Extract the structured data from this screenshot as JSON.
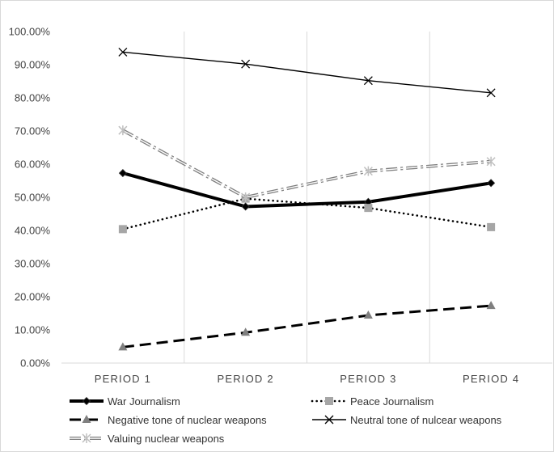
{
  "chart_data": {
    "type": "line",
    "categories": [
      "PERIOD 1",
      "PERIOD 2",
      "PERIOD 3",
      "PERIOD 4"
    ],
    "ylim": [
      0,
      100
    ],
    "y_ticks": [
      0,
      10,
      20,
      30,
      40,
      50,
      60,
      70,
      80,
      90,
      100
    ],
    "y_tick_labels": [
      "0.00%",
      "10.00%",
      "20.00%",
      "30.00%",
      "40.00%",
      "50.00%",
      "60.00%",
      "70.00%",
      "80.00%",
      "90.00%",
      "100.00%"
    ],
    "grid": "vertical",
    "legend_position": "bottom",
    "series": [
      {
        "name": "War Journalism",
        "values": [
          57.3,
          47.2,
          48.6,
          54.3
        ],
        "color": "#000000",
        "style": "thick-solid",
        "marker": "diamond"
      },
      {
        "name": "Peace Journalism",
        "values": [
          40.4,
          49.6,
          46.8,
          41.0
        ],
        "color": "#000000",
        "marker_color": "#a6a6a6",
        "style": "dotted",
        "marker": "square"
      },
      {
        "name": "Negative tone of nuclear weapons",
        "values": [
          4.8,
          9.2,
          14.4,
          17.3
        ],
        "color": "#000000",
        "marker_color": "#7f7f7f",
        "style": "dashed",
        "marker": "triangle"
      },
      {
        "name": "Neutral tone of nulcear weapons",
        "values": [
          93.8,
          90.2,
          85.2,
          81.5
        ],
        "color": "#000000",
        "style": "thin-solid",
        "marker": "x"
      },
      {
        "name": "Valuing nuclear weapons",
        "values": [
          70.2,
          50.0,
          57.9,
          60.8
        ],
        "color": "#7f7f7f",
        "marker_color": "#bfbfbf",
        "style": "double-dashdot",
        "marker": "asterisk"
      }
    ]
  }
}
